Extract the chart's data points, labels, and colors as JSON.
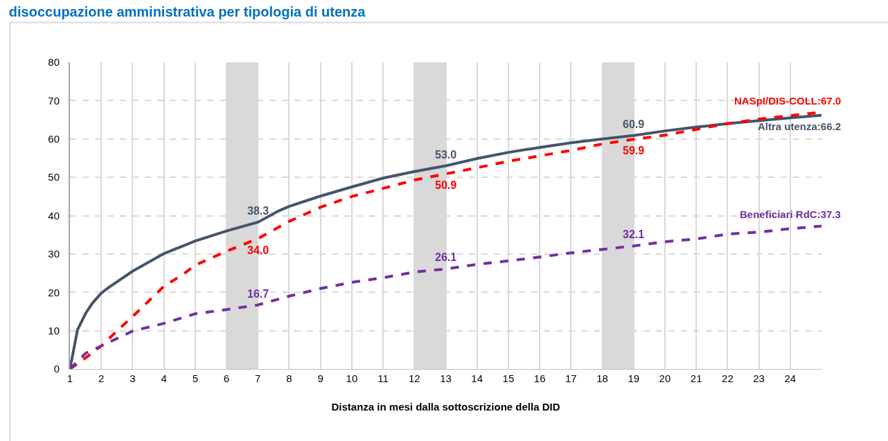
{
  "chart_data": {
    "type": "line",
    "title": "disoccupazione amministrativa per tipologia di utenza",
    "xlabel": "Distanza in mesi dalla sottoscrizione della DID",
    "xlim": [
      1,
      25
    ],
    "xticks": [
      1,
      2,
      3,
      4,
      5,
      6,
      7,
      8,
      9,
      10,
      11,
      12,
      13,
      14,
      15,
      16,
      17,
      18,
      19,
      20,
      21,
      22,
      23,
      24
    ],
    "ylim": [
      0,
      80
    ],
    "yticks": [
      0,
      10,
      20,
      30,
      40,
      50,
      60,
      70,
      80
    ],
    "grid": true,
    "marker": "none",
    "series": [
      {
        "color": "#44546a",
        "line_style": "solid",
        "x": [
          1,
          1.24,
          1.5,
          1.71,
          2,
          2.24,
          3,
          4,
          5,
          6,
          7,
          7.68,
          8,
          9,
          10,
          11,
          12,
          13,
          14,
          15,
          16,
          17,
          18,
          19,
          20,
          21,
          22,
          23,
          24,
          25
        ],
        "values": [
          0,
          10.2,
          14.5,
          17.1,
          19.8,
          21.3,
          25.5,
          30.1,
          33.4,
          36.0,
          38.3,
          41.3,
          42.4,
          45.1,
          47.5,
          49.8,
          51.5,
          53.0,
          54.9,
          56.5,
          57.8,
          59.0,
          60.0,
          60.9,
          62.1,
          63.1,
          64.0,
          64.8,
          65.5,
          66.2
        ]
      },
      {
        "color": "#ff0000",
        "line_style": "dashed",
        "x": [
          1,
          1.5,
          2,
          2.5,
          3,
          3.4,
          4,
          4.6,
          5,
          6,
          7,
          8,
          9,
          10,
          11,
          12,
          13,
          14,
          15,
          16,
          17,
          18,
          19,
          20,
          21,
          22,
          23,
          24,
          25
        ],
        "values": [
          0,
          2.9,
          6.0,
          9.9,
          13.7,
          16.8,
          21.6,
          24.6,
          27.1,
          30.7,
          34.0,
          38.5,
          42.2,
          45.0,
          47.1,
          49.3,
          50.9,
          52.5,
          54.2,
          55.6,
          57.0,
          58.7,
          59.9,
          61.0,
          62.5,
          64.0,
          65.2,
          66.1,
          67.0
        ]
      },
      {
        "color": "#7030a0",
        "line_style": "dashed",
        "x": [
          1,
          1.5,
          2,
          3,
          4,
          5,
          6,
          7,
          8,
          9,
          10,
          11,
          12,
          13,
          14,
          15,
          16,
          17,
          18,
          19,
          20,
          21,
          22,
          23,
          24,
          25
        ],
        "values": [
          0,
          4.1,
          6.0,
          9.9,
          11.9,
          14.4,
          15.5,
          16.7,
          19.0,
          21.0,
          22.6,
          23.8,
          25.3,
          26.1,
          27.3,
          28.2,
          29.2,
          30.3,
          31.2,
          32.1,
          33.2,
          33.9,
          35.2,
          35.7,
          36.6,
          37.3
        ]
      }
    ],
    "bands": [
      {
        "axis": "x",
        "from": 6,
        "to": 7,
        "color": "#d9d9d9"
      },
      {
        "axis": "x",
        "from": 12,
        "to": 13,
        "color": "#d9d9d9"
      },
      {
        "axis": "x",
        "from": 18,
        "to": 19,
        "color": "#d9d9d9"
      }
    ],
    "annotations": [
      {
        "text": "38.3",
        "x": 7,
        "y": 38.3
      },
      {
        "text": "34.0",
        "x": 7,
        "y": 34.0
      },
      {
        "text": "16.7",
        "x": 7,
        "y": 16.7
      },
      {
        "text": "53.0",
        "x": 13,
        "y": 53.0
      },
      {
        "text": "50.9",
        "x": 13,
        "y": 50.9
      },
      {
        "text": "26.1",
        "x": 13,
        "y": 26.1
      },
      {
        "text": "60.9",
        "x": 19,
        "y": 60.9
      },
      {
        "text": "59.9",
        "x": 19,
        "y": 59.9
      },
      {
        "text": "32.1",
        "x": 19,
        "y": 32.1
      },
      {
        "text": "NASpI/DIS-COLL:67.0",
        "x": 25,
        "y": 67.0
      },
      {
        "text": "Altra utenza:66.2",
        "x": 25,
        "y": 66.2
      },
      {
        "text": "Beneficiari RdC:37.3",
        "x": 25,
        "y": 37.3
      }
    ]
  }
}
